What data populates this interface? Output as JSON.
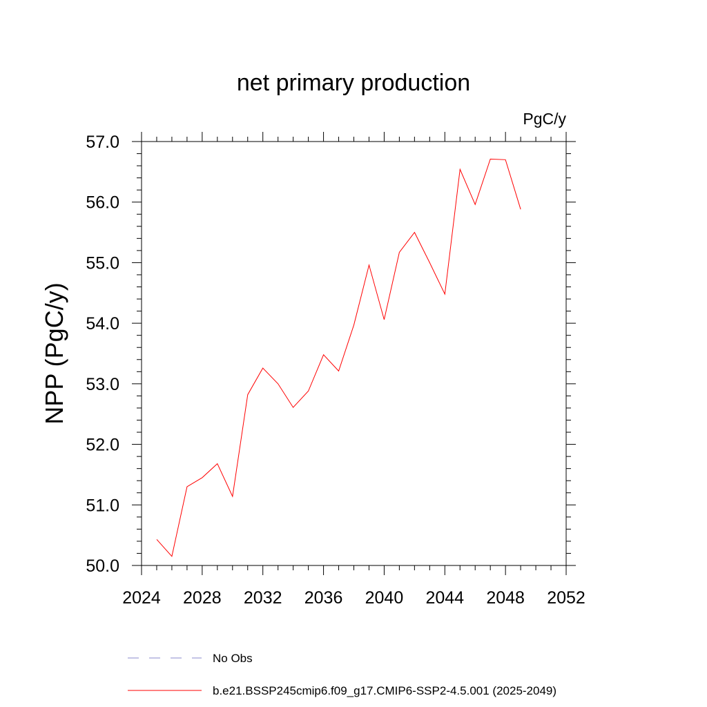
{
  "chart_data": {
    "type": "line",
    "title": "net primary production",
    "units": "PgC/y",
    "ylabel": "NPP  (PgC/y)",
    "xlabel": "",
    "xlim": [
      2024,
      2052
    ],
    "ylim": [
      50.0,
      57.0
    ],
    "x_ticks": [
      2024,
      2028,
      2032,
      2036,
      2040,
      2044,
      2048,
      2052
    ],
    "x_tick_labels": [
      "2024",
      "2028",
      "2032",
      "2036",
      "2040",
      "2044",
      "2048",
      "2052"
    ],
    "y_ticks": [
      50.0,
      51.0,
      52.0,
      53.0,
      54.0,
      55.0,
      56.0,
      57.0
    ],
    "y_tick_labels": [
      "50.0",
      "51.0",
      "52.0",
      "53.0",
      "54.0",
      "55.0",
      "56.0",
      "57.0"
    ],
    "x_minor_step": 1,
    "y_minor_step": 0.2,
    "grid": false,
    "legend_position": "bottom",
    "series": [
      {
        "name": "b.e21.BSSP245cmip6.f09_g17.CMIP6-SSP2-4.5.001 (2025-2049)",
        "color": "#ff0000",
        "style": "solid",
        "x": [
          2025,
          2026,
          2027,
          2028,
          2029,
          2030,
          2031,
          2032,
          2033,
          2034,
          2035,
          2036,
          2037,
          2038,
          2039,
          2040,
          2041,
          2042,
          2043,
          2044,
          2045,
          2046,
          2047,
          2048,
          2049
        ],
        "values": [
          50.43,
          50.15,
          51.3,
          51.45,
          51.68,
          51.14,
          52.82,
          53.26,
          53.0,
          52.61,
          52.88,
          53.48,
          53.21,
          53.97,
          54.96,
          54.06,
          55.17,
          55.5,
          55.0,
          54.48,
          56.54,
          55.96,
          56.71,
          56.7,
          55.88
        ]
      }
    ],
    "legend": [
      {
        "label": "No Obs",
        "color": "#8888cc",
        "style": "dashed"
      },
      {
        "label": "b.e21.BSSP245cmip6.f09_g17.CMIP6-SSP2-4.5.001 (2025-2049)",
        "color": "#ff0000",
        "style": "solid"
      }
    ]
  }
}
